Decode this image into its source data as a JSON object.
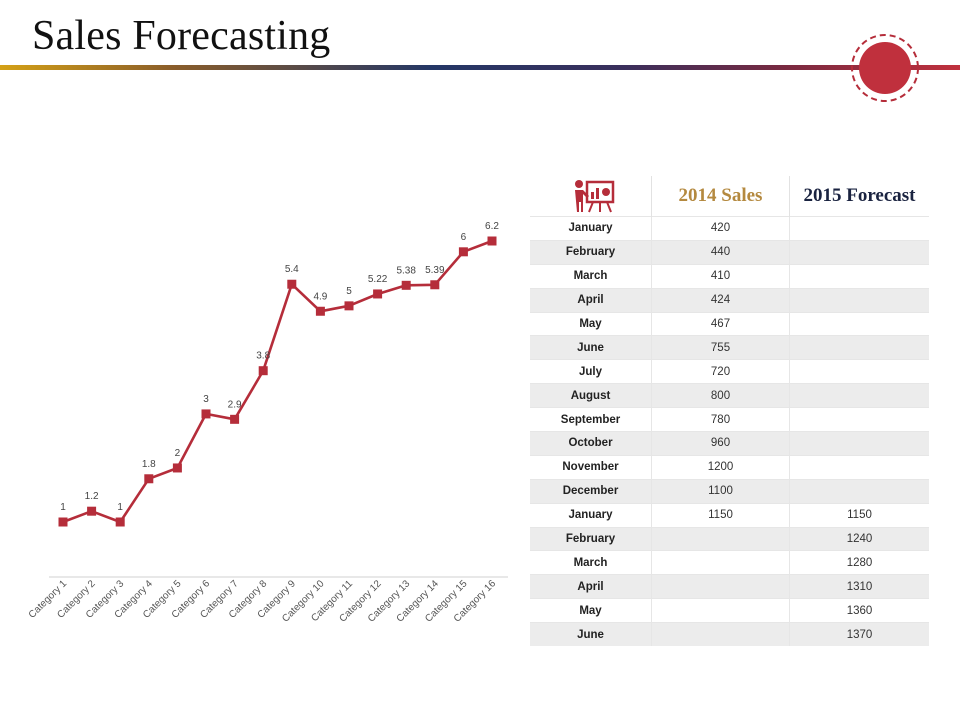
{
  "page": {
    "title": "Sales Forecasting"
  },
  "colors": {
    "accent": "#b52d3a",
    "gold": "#b4893f",
    "navy": "#1a2340"
  },
  "icons": {
    "badge": "target-circle-icon",
    "table": "presentation-board-icon"
  },
  "chart_data": {
    "type": "line",
    "categories": [
      "Category 1",
      "Category 2",
      "Category 3",
      "Category 4",
      "Category 5",
      "Category 6",
      "Category 7",
      "Category 8",
      "Category 9",
      "Category 10",
      "Category 11",
      "Category 12",
      "Category 13",
      "Category 14",
      "Category 15",
      "Category 16"
    ],
    "values": [
      1,
      1.2,
      1,
      1.8,
      2,
      3,
      2.9,
      3.8,
      5.4,
      4.9,
      5,
      5.22,
      5.38,
      5.39,
      6,
      6.2
    ],
    "data_labels": [
      "1",
      "1.2",
      "1",
      "1.8",
      "2",
      "3",
      "2.9",
      "3.8",
      "5.4",
      "4.9",
      "5",
      "5.22",
      "5.38",
      "5.39",
      "6",
      "6.2"
    ],
    "ylim": [
      0,
      7
    ],
    "grid": false,
    "legend": "none",
    "color": "#b52d3a"
  },
  "table": {
    "headers": [
      "",
      "2014 Sales",
      "2015 Forecast"
    ],
    "rows": [
      [
        "January",
        "420",
        ""
      ],
      [
        "February",
        "440",
        ""
      ],
      [
        "March",
        "410",
        ""
      ],
      [
        "April",
        "424",
        ""
      ],
      [
        "May",
        "467",
        ""
      ],
      [
        "June",
        "755",
        ""
      ],
      [
        "July",
        "720",
        ""
      ],
      [
        "August",
        "800",
        ""
      ],
      [
        "September",
        "780",
        ""
      ],
      [
        "October",
        "960",
        ""
      ],
      [
        "November",
        "1200",
        ""
      ],
      [
        "December",
        "1100",
        ""
      ],
      [
        "January",
        "1150",
        "1150"
      ],
      [
        "February",
        "",
        "1240"
      ],
      [
        "March",
        "",
        "1280"
      ],
      [
        "April",
        "",
        "1310"
      ],
      [
        "May",
        "",
        "1360"
      ],
      [
        "June",
        "",
        "1370"
      ]
    ]
  }
}
